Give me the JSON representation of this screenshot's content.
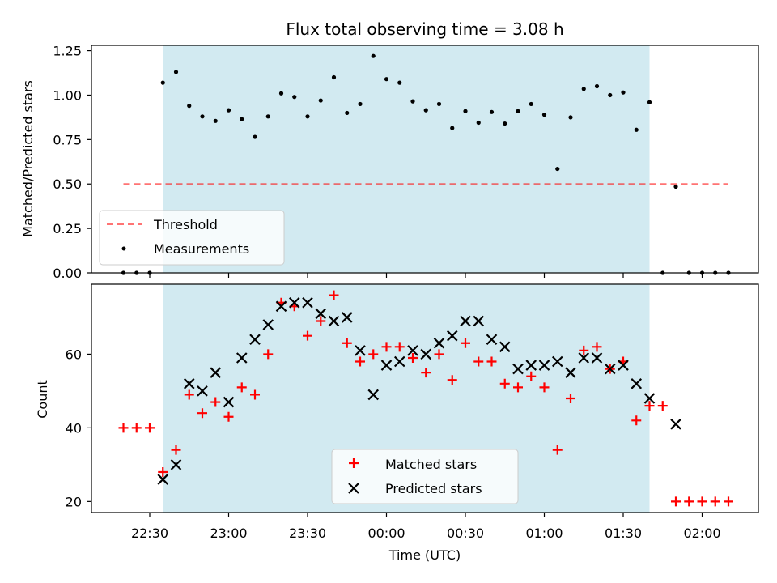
{
  "title": "Flux total observing time = 3.08 h",
  "colors": {
    "span": "#add8e6",
    "threshold": "#ff0000",
    "measurement": "#000000",
    "matched": "#ff0000",
    "predicted": "#000000"
  },
  "chart_data": [
    {
      "type": "scatter",
      "ylabel": "Matched/Predicted stars",
      "ylim": [
        0,
        1.28
      ],
      "yticks": [
        0,
        0.25,
        0.5,
        0.75,
        1.0,
        1.25
      ],
      "ytick_labels": [
        "0.00",
        "0.25",
        "0.50",
        "0.75",
        "1.00",
        "1.25"
      ],
      "highlight_span": [
        "22:35",
        "01:40"
      ],
      "threshold": {
        "name": "Threshold",
        "value": 0.5,
        "x_start": "22:20",
        "x_end": "02:10"
      },
      "legend": {
        "position": "lower-left",
        "entries": [
          "Threshold",
          "Measurements"
        ]
      },
      "series": [
        {
          "name": "Measurements",
          "x": [
            "22:20",
            "22:25",
            "22:30",
            "22:35",
            "22:40",
            "22:45",
            "22:50",
            "22:55",
            "23:00",
            "23:05",
            "23:10",
            "23:15",
            "23:20",
            "23:25",
            "23:30",
            "23:35",
            "23:40",
            "23:45",
            "23:50",
            "23:55",
            "00:00",
            "00:05",
            "00:10",
            "00:15",
            "00:20",
            "00:25",
            "00:30",
            "00:35",
            "00:40",
            "00:45",
            "00:50",
            "00:55",
            "01:00",
            "01:05",
            "01:10",
            "01:15",
            "01:20",
            "01:25",
            "01:30",
            "01:35",
            "01:40",
            "01:45",
            "01:50",
            "01:55",
            "02:00",
            "02:05",
            "02:10"
          ],
          "y": [
            0,
            0,
            0,
            1.07,
            1.13,
            0.94,
            0.88,
            0.855,
            0.915,
            0.865,
            0.765,
            0.88,
            1.01,
            0.99,
            0.88,
            0.97,
            1.1,
            0.9,
            0.95,
            1.22,
            1.09,
            1.07,
            0.965,
            0.915,
            0.95,
            0.815,
            0.91,
            0.845,
            0.905,
            0.84,
            0.91,
            0.95,
            0.89,
            0.585,
            0.875,
            1.035,
            1.05,
            1.0,
            1.015,
            0.805,
            0.96,
            0,
            0.485,
            0,
            0,
            0,
            0
          ]
        }
      ]
    },
    {
      "type": "scatter",
      "xlabel": "Time (UTC)",
      "ylabel": "Count",
      "ylim": [
        17,
        79
      ],
      "yticks": [
        20,
        40,
        60
      ],
      "ytick_labels": [
        "20",
        "40",
        "60"
      ],
      "xticks": [
        "22:30",
        "23:00",
        "23:30",
        "00:00",
        "00:30",
        "01:00",
        "01:30",
        "02:00"
      ],
      "highlight_span": [
        "22:35",
        "01:40"
      ],
      "legend": {
        "position": "lower-center",
        "entries": [
          "Matched stars",
          "Predicted stars"
        ]
      },
      "series": [
        {
          "name": "Matched stars",
          "marker": "plus",
          "x": [
            "22:20",
            "22:25",
            "22:30",
            "22:35",
            "22:40",
            "22:45",
            "22:50",
            "22:55",
            "23:00",
            "23:05",
            "23:10",
            "23:15",
            "23:20",
            "23:25",
            "23:30",
            "23:35",
            "23:40",
            "23:45",
            "23:50",
            "23:55",
            "00:00",
            "00:05",
            "00:10",
            "00:15",
            "00:20",
            "00:25",
            "00:30",
            "00:35",
            "00:40",
            "00:45",
            "00:50",
            "00:55",
            "01:00",
            "01:05",
            "01:10",
            "01:15",
            "01:20",
            "01:25",
            "01:30",
            "01:35",
            "01:40",
            "01:45",
            "01:50",
            "01:55",
            "02:00",
            "02:05",
            "02:10"
          ],
          "y": [
            40,
            40,
            40,
            28,
            34,
            49,
            44,
            47,
            43,
            51,
            49,
            60,
            74,
            73,
            65,
            69,
            76,
            63,
            58,
            60,
            62,
            62,
            59,
            55,
            60,
            53,
            63,
            58,
            58,
            52,
            51,
            54,
            51,
            34,
            48,
            61,
            62,
            56,
            58,
            42,
            46,
            46,
            20,
            20,
            20,
            20,
            20
          ]
        },
        {
          "name": "Predicted stars",
          "marker": "x",
          "x": [
            "22:35",
            "22:40",
            "22:45",
            "22:50",
            "22:55",
            "23:00",
            "23:05",
            "23:10",
            "23:15",
            "23:20",
            "23:25",
            "23:30",
            "23:35",
            "23:40",
            "23:45",
            "23:50",
            "23:55",
            "00:00",
            "00:05",
            "00:10",
            "00:15",
            "00:20",
            "00:25",
            "00:30",
            "00:35",
            "00:40",
            "00:45",
            "00:50",
            "00:55",
            "01:00",
            "01:05",
            "01:10",
            "01:15",
            "01:20",
            "01:25",
            "01:30",
            "01:35",
            "01:40",
            "01:50"
          ],
          "y": [
            26,
            30,
            52,
            50,
            55,
            47,
            59,
            64,
            68,
            73,
            74,
            74,
            71,
            69,
            70,
            61,
            49,
            57,
            58,
            61,
            60,
            63,
            65,
            69,
            69,
            64,
            62,
            56,
            57,
            57,
            58,
            55,
            59,
            59,
            56,
            57,
            52,
            48,
            41
          ]
        }
      ]
    }
  ]
}
